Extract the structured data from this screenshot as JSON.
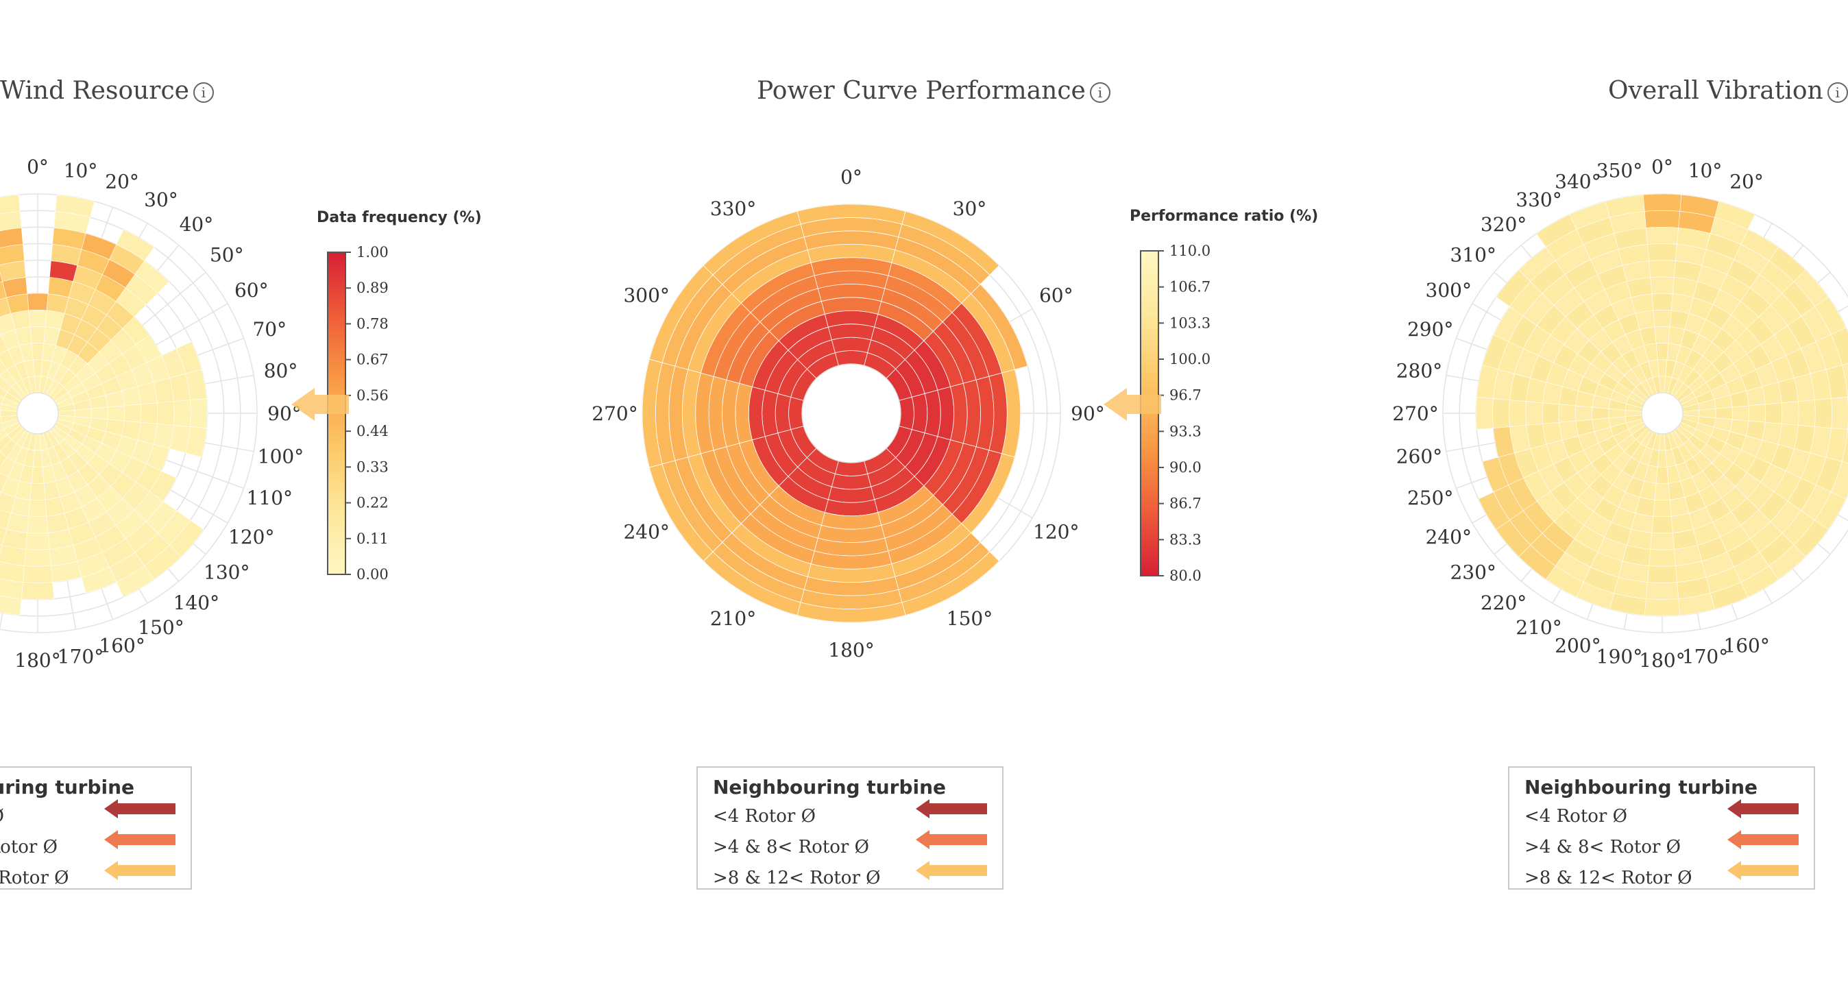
{
  "panels": [
    {
      "title": "Wind Resource",
      "info_icon": "info-icon"
    },
    {
      "title": "Power Curve Performance",
      "info_icon": "info-icon"
    },
    {
      "title": "Overall Vibration",
      "info_icon": "info-icon"
    }
  ],
  "legend": {
    "title": "Neighbouring turbine",
    "items": [
      {
        "label": "<4 Rotor Ø",
        "color": "#b03a3a"
      },
      {
        "label": ">4 & 8< Rotor Ø",
        "color": "#f07a50"
      },
      {
        "label": ">8 & 12< Rotor Ø",
        "color": "#fbc36a"
      }
    ]
  },
  "chart_data": [
    {
      "type": "heatmap",
      "subtype": "polar",
      "title": "Wind Resource",
      "colorbar": {
        "title": "Data frequency (%)",
        "ticks": [
          "1.00",
          "0.89",
          "0.78",
          "0.67",
          "0.56",
          "0.44",
          "0.33",
          "0.22",
          "0.11",
          "0.00"
        ],
        "range": [
          0,
          1.0
        ]
      },
      "angle_labels": [
        "0°",
        "10°",
        "20°",
        "30°",
        "40°",
        "50°",
        "60°",
        "70°",
        "80°",
        "90°",
        "100°",
        "110°",
        "120°",
        "130°",
        "140°",
        "150°",
        "160°",
        "170°",
        "180°"
      ],
      "sector_extent_rings": [
        6,
        12,
        10,
        11,
        10,
        7,
        7,
        9,
        9,
        9,
        9,
        7,
        8,
        11,
        11,
        11,
        10,
        9,
        10,
        11,
        11,
        11,
        12,
        12,
        12,
        12,
        12,
        12,
        12,
        12,
        12,
        12,
        12,
        12,
        12,
        12
      ],
      "peak_cells": [
        {
          "sector": 0,
          "ring": 7,
          "value": 0.95
        },
        {
          "sector": 1,
          "ring": 7,
          "value": 0.9
        }
      ],
      "neighbour_marker": {
        "direction": "90°",
        "category": ">8 & 12< Rotor Ø"
      }
    },
    {
      "type": "heatmap",
      "subtype": "polar",
      "title": "Power Curve Performance",
      "colorbar": {
        "title": "Performance ratio (%)",
        "ticks": [
          "110.0",
          "106.7",
          "103.3",
          "100.0",
          "96.7",
          "93.3",
          "90.0",
          "86.7",
          "83.3",
          "80.0"
        ],
        "range": [
          80.0,
          110.0
        ]
      },
      "angle_labels": [
        "0°",
        "30°",
        "60°",
        "90°",
        "120°",
        "150°",
        "180°",
        "210°",
        "240°",
        "270°",
        "300°",
        "330°"
      ],
      "sector_extent_rings": [
        12,
        12,
        10,
        9,
        9,
        12,
        12,
        12,
        12,
        12,
        12,
        12
      ],
      "inner_ring_value": 82,
      "outer_ring_value": 96,
      "neighbour_marker": {
        "direction": "90°",
        "category": ">8 & 12< Rotor Ø"
      }
    },
    {
      "type": "heatmap",
      "subtype": "polar",
      "title": "Overall Vibration",
      "angle_labels": [
        "0°",
        "10°",
        "20°",
        "160°",
        "170°",
        "180°",
        "190°",
        "200°",
        "210°",
        "220°",
        "230°",
        "240°",
        "250°",
        "260°",
        "270°",
        "280°",
        "290°",
        "300°",
        "310°",
        "320°",
        "330°",
        "340°",
        "350°"
      ],
      "sector_extent_rings": [
        12,
        12,
        12,
        11,
        11,
        11,
        11,
        11,
        11,
        11,
        11,
        11,
        11,
        11,
        11,
        11,
        11,
        11,
        11,
        11,
        11,
        11,
        11,
        11,
        11,
        10,
        9,
        10,
        10,
        10,
        10,
        11,
        11,
        12,
        12,
        12
      ],
      "neighbour_marker": {
        "direction": "none"
      }
    }
  ]
}
